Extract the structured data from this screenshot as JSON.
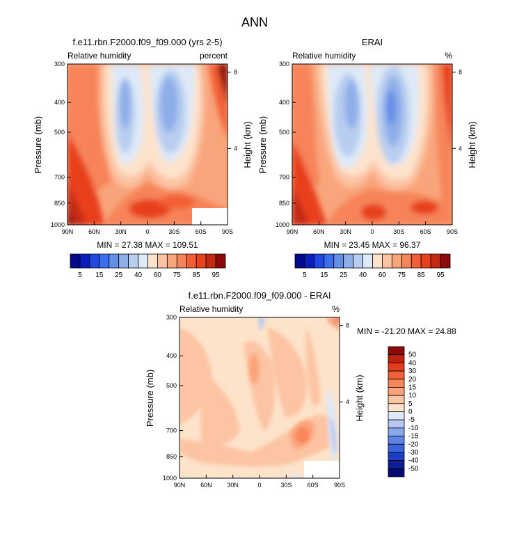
{
  "figure_title": "ANN",
  "chart_data": [
    {
      "type": "contour",
      "title": "f.e11.rbn.F2000.f09_f09.000 (yrs 2-5)",
      "left_label": "Relative humidity",
      "right_label": "percent",
      "ylabel": "Pressure (mb)",
      "ylabel_right": "Height (km)",
      "x_ticks": [
        "90N",
        "60N",
        "30N",
        "0",
        "30S",
        "60S",
        "90S"
      ],
      "y_ticks": [
        "300",
        "400",
        "500",
        "700",
        "850",
        "1000"
      ],
      "y_tick_values": [
        300,
        400,
        500,
        700,
        850,
        1000
      ],
      "height_ticks": [
        "8",
        "4"
      ],
      "height_tick_values": [
        8,
        4
      ],
      "ylim": [
        1000,
        300
      ],
      "xlim": [
        90,
        -90
      ],
      "stats": "MIN = 27.38   MAX = 109.51",
      "min": 27.38,
      "max": 109.51,
      "levels": [
        5,
        10,
        15,
        20,
        25,
        30,
        40,
        50,
        60,
        65,
        70,
        75,
        80,
        85,
        90,
        95
      ],
      "colorbar_labels": [
        "5",
        "15",
        "25",
        "40",
        "60",
        "75",
        "85",
        "95"
      ]
    },
    {
      "type": "contour",
      "title": "ERAI",
      "left_label": "Relative humidity",
      "right_label": "%",
      "ylabel": "Pressure (mb)",
      "ylabel_right": "Height (km)",
      "x_ticks": [
        "90N",
        "60N",
        "30N",
        "0",
        "30S",
        "60S",
        "90S"
      ],
      "y_ticks": [
        "300",
        "400",
        "500",
        "700",
        "850",
        "1000"
      ],
      "y_tick_values": [
        300,
        400,
        500,
        700,
        850,
        1000
      ],
      "height_ticks": [
        "8",
        "4"
      ],
      "height_tick_values": [
        8,
        4
      ],
      "ylim": [
        1000,
        300
      ],
      "xlim": [
        90,
        -90
      ],
      "stats": "MIN = 23.45   MAX = 96.37",
      "min": 23.45,
      "max": 96.37,
      "levels": [
        5,
        10,
        15,
        20,
        25,
        30,
        40,
        50,
        60,
        65,
        70,
        75,
        80,
        85,
        90,
        95
      ],
      "colorbar_labels": [
        "5",
        "15",
        "25",
        "40",
        "60",
        "75",
        "85",
        "95"
      ]
    },
    {
      "type": "contour",
      "title": "f.e11.rbn.F2000.f09_f09.000 - ERAI",
      "left_label": "Relative humidity",
      "right_label": "%",
      "ylabel": "Pressure (mb)",
      "ylabel_right": "Height (km)",
      "x_ticks": [
        "90N",
        "60N",
        "30N",
        "0",
        "30S",
        "60S",
        "90S"
      ],
      "y_ticks": [
        "300",
        "400",
        "500",
        "700",
        "850",
        "1000"
      ],
      "y_tick_values": [
        300,
        400,
        500,
        700,
        850,
        1000
      ],
      "height_ticks": [
        "8",
        "4"
      ],
      "height_tick_values": [
        8,
        4
      ],
      "ylim": [
        1000,
        300
      ],
      "xlim": [
        90,
        -90
      ],
      "stats": "MIN = -21.20   MAX = 24.88",
      "min": -21.2,
      "max": 24.88,
      "levels": [
        -50,
        -40,
        -30,
        -20,
        -15,
        -10,
        -5,
        0,
        5,
        10,
        15,
        20,
        30,
        40,
        50
      ],
      "colorbar_labels": [
        "50",
        "40",
        "30",
        "20",
        "15",
        "10",
        "5",
        "0",
        "-5",
        "-10",
        "-15",
        "-20",
        "-30",
        "-40",
        "-50"
      ]
    }
  ],
  "colors": {
    "abs_scale": [
      "#040a8c",
      "#0a1ec0",
      "#2048e0",
      "#3c6ff0",
      "#648ee8",
      "#8eaee8",
      "#b8cdf0",
      "#deeaf8",
      "#fde3cc",
      "#fbc3a2",
      "#f9a57c",
      "#f68458",
      "#f25f36",
      "#e8411e",
      "#c42a12",
      "#8c0a0a"
    ],
    "diff_scale": [
      "#8c0a0a",
      "#c0200e",
      "#e63c1c",
      "#f2603a",
      "#f88658",
      "#fba47c",
      "#fcc4a2",
      "#fde3ca",
      "#dce8f8",
      "#b4c8f2",
      "#8aa8ec",
      "#5e84e6",
      "#3a64de",
      "#1a3ec4",
      "#0c1e98",
      "#040a70"
    ]
  }
}
